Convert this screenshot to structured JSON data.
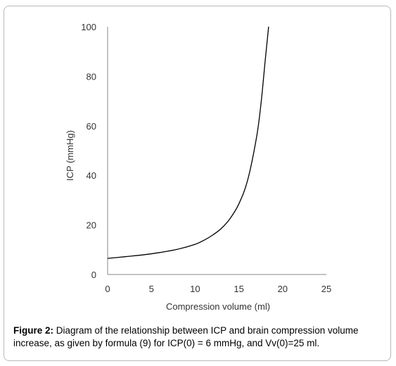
{
  "chart_data": {
    "type": "line",
    "xlabel": "Compression volume (ml)",
    "ylabel": "ICP (mmHg)",
    "xlim": [
      0,
      25
    ],
    "ylim": [
      0,
      100
    ],
    "xticks": [
      "0",
      "5",
      "10",
      "15",
      "20",
      "25"
    ],
    "yticks": [
      "0",
      "20",
      "40",
      "60",
      "80",
      "100"
    ],
    "grid": false,
    "series": [
      {
        "x": [
          0,
          2,
          4,
          6,
          8,
          10,
          11,
          12,
          13,
          14,
          15,
          16,
          17,
          17.5,
          18,
          18.4
        ],
        "y": [
          6.5,
          7.2,
          7.9,
          8.9,
          10.2,
          12.2,
          13.8,
          15.9,
          18.6,
          22.6,
          28.5,
          38,
          55,
          68,
          86,
          100
        ],
        "color": "#000000"
      }
    ]
  },
  "caption": {
    "lead": "Figure 2:",
    "text": " Diagram of the relationship between ICP and brain compression volume increase, as given by formula (9) for ICP(0) = 6 mmHg, and Vv(0)=25 ml."
  }
}
